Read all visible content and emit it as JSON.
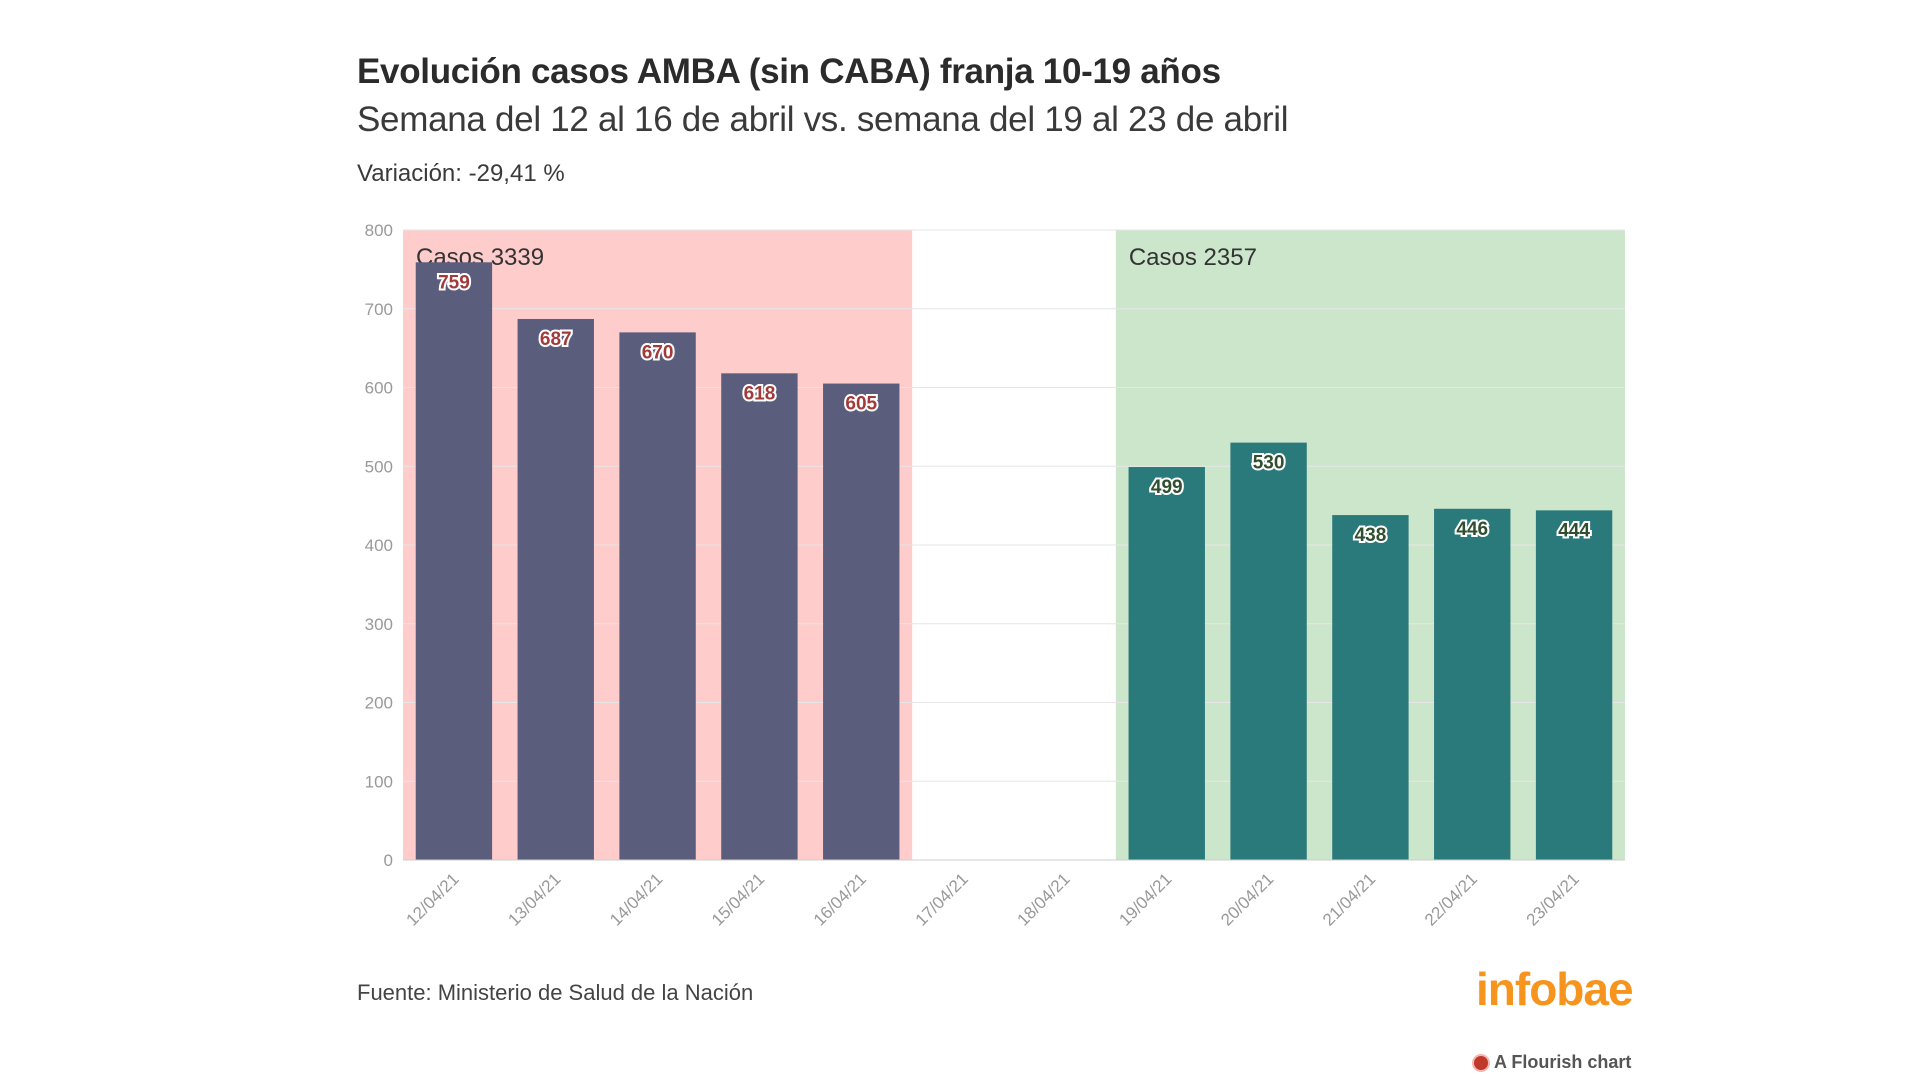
{
  "header": {
    "title": "Evolución casos AMBA (sin CABA) franja 10-19 años",
    "subtitle": "Semana del 12 al 16 de abril vs. semana del 19 al 23 de abril",
    "variation": "Variación: -29,41 %"
  },
  "footer": {
    "source": "Fuente: Ministerio de Salud de la Nación",
    "logo": "infobae",
    "credit": "A Flourish chart",
    "credit_icon": "flourish-icon"
  },
  "chart_data": {
    "type": "bar",
    "categories": [
      "12/04/21",
      "13/04/21",
      "14/04/21",
      "15/04/21",
      "16/04/21",
      "17/04/21",
      "18/04/21",
      "19/04/21",
      "20/04/21",
      "21/04/21",
      "22/04/21",
      "23/04/21"
    ],
    "values": [
      759,
      687,
      670,
      618,
      605,
      null,
      null,
      499,
      530,
      438,
      446,
      444
    ],
    "ylim": [
      0,
      800
    ],
    "yticks": [
      0,
      100,
      200,
      300,
      400,
      500,
      600,
      700,
      800
    ],
    "grid": true,
    "highlights": [
      {
        "label": "Casos 3339",
        "from": "12/04/21",
        "to": "16/04/21",
        "color": "#ffcccc",
        "bar_color": "#5b5d7d",
        "label_color": "#a23a3a"
      },
      {
        "label": "Casos 2357",
        "from": "19/04/21",
        "to": "23/04/21",
        "color": "#cce6cc",
        "bar_color": "#2a7a7c",
        "label_color": "#2f4f2f"
      }
    ]
  }
}
